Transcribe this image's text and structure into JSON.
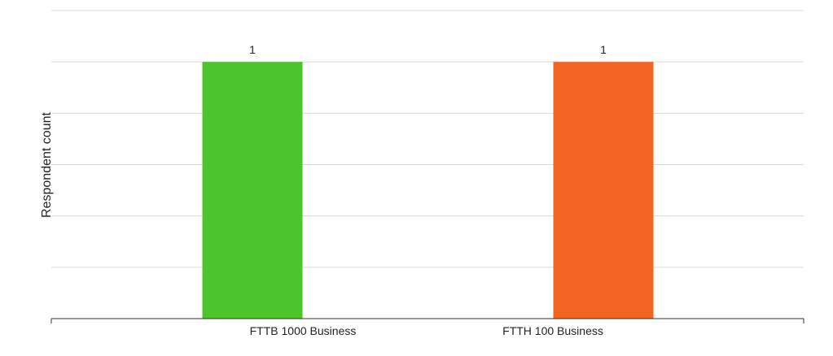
{
  "chart_data": {
    "type": "bar",
    "title": "",
    "xlabel": "",
    "ylabel": "Respondent count",
    "categories": [
      "FTTB 1000 Business",
      "FTTH 100 Business"
    ],
    "values": [
      1,
      1
    ],
    "data_labels": [
      "1",
      "1"
    ],
    "colors": [
      "#4cc42c",
      "#f26422"
    ],
    "ylim": [
      0,
      1.2
    ],
    "grid": true,
    "legend": "none"
  }
}
